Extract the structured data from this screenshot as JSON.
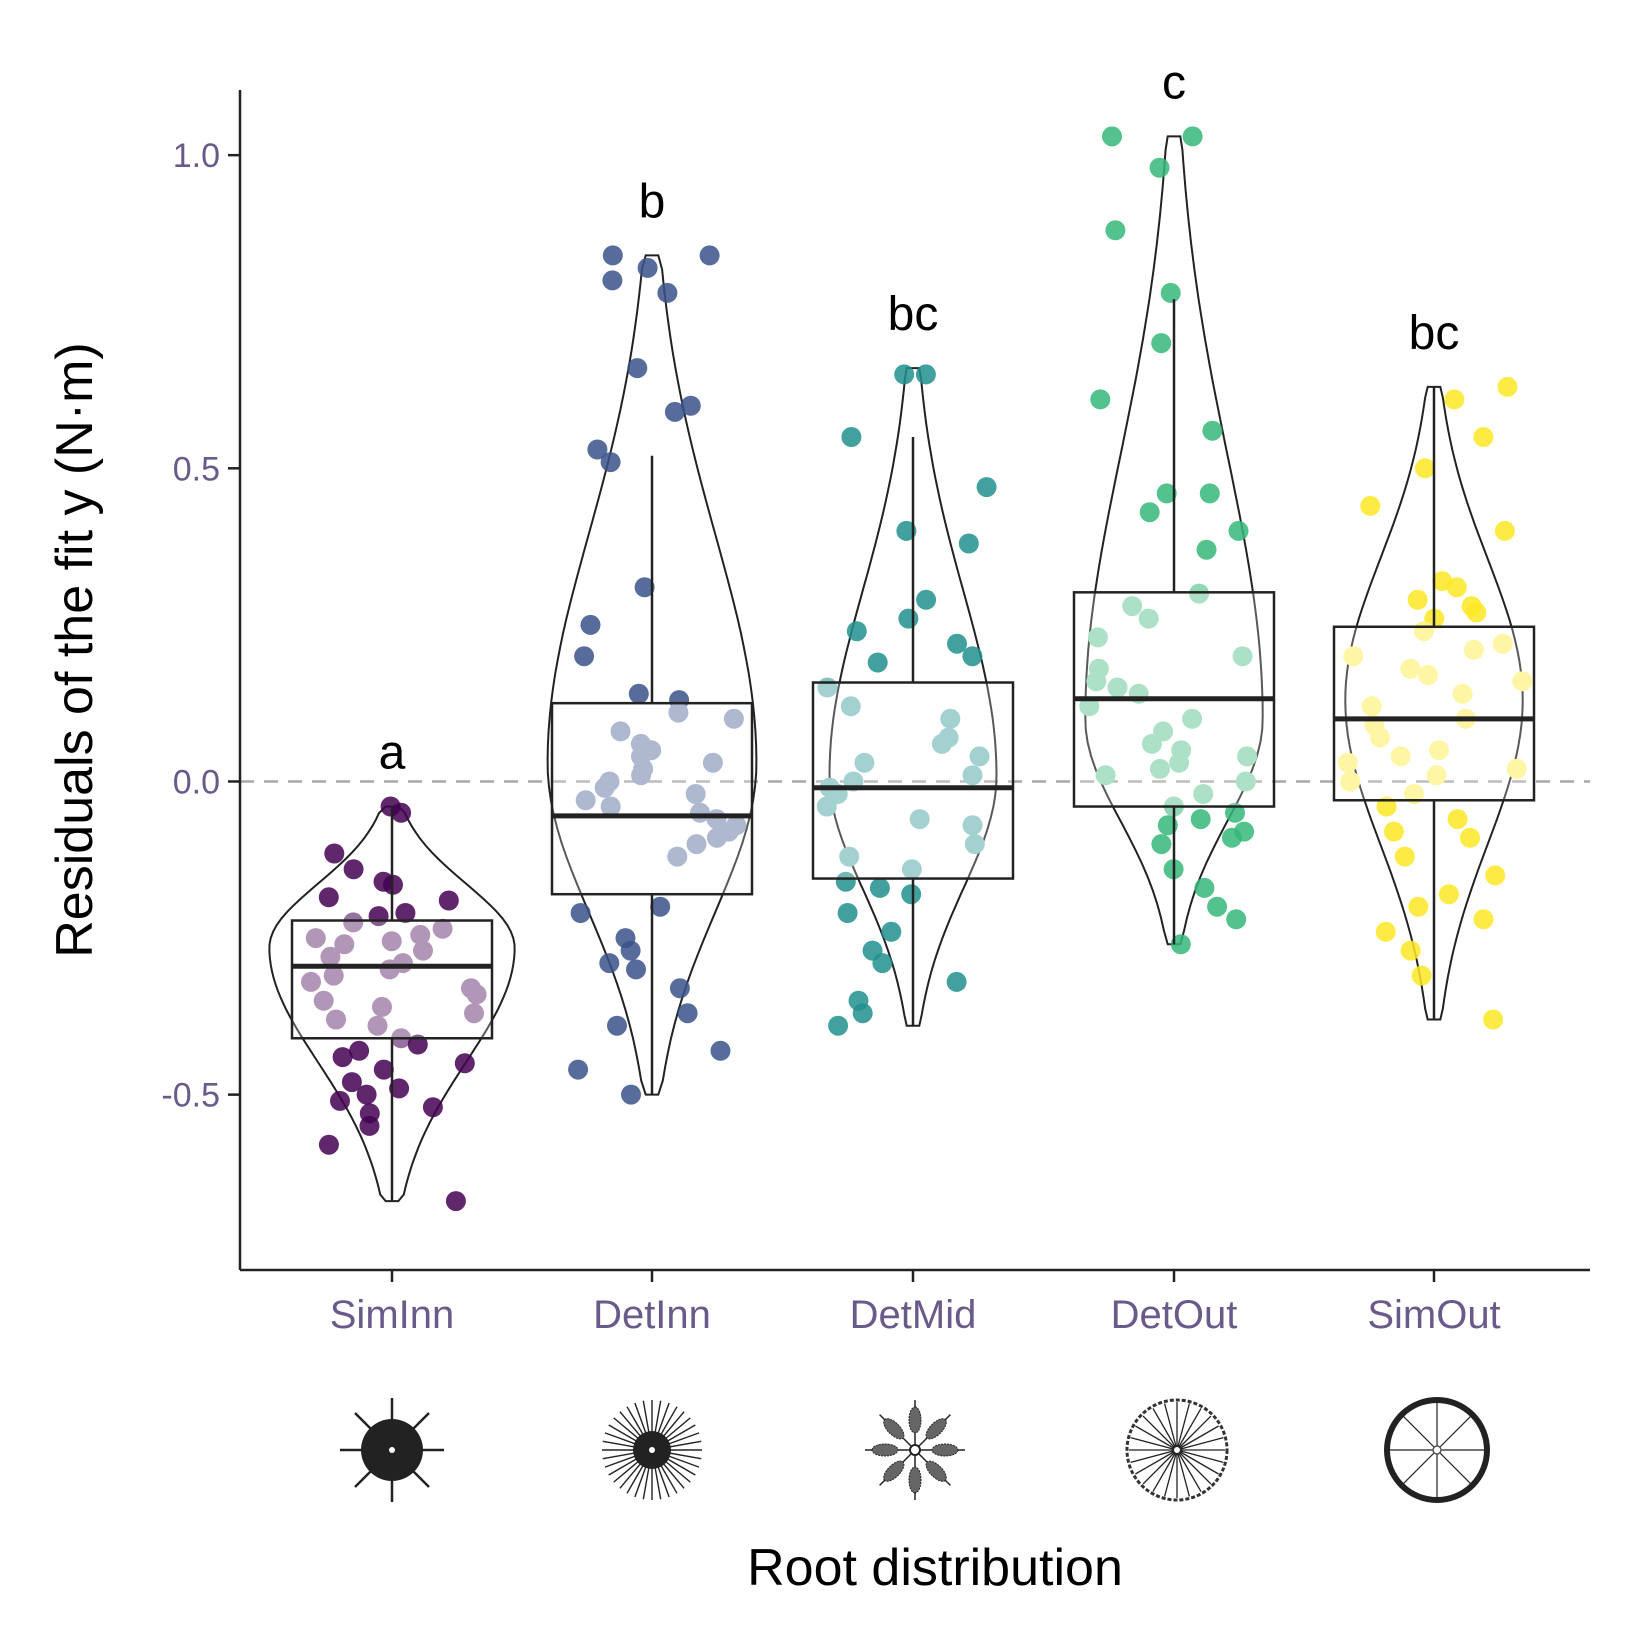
{
  "chart_data": {
    "type": "box-violin-jitter",
    "xlabel": "Root distribution",
    "ylabel": "Residuals of the fit y (N·m)",
    "ylim": [
      -0.78,
      1.12
    ],
    "yticks": [
      -0.5,
      0.0,
      0.5,
      1.0
    ],
    "ytick_labels": [
      "-0.5",
      "0.0",
      "0.5",
      "1.0"
    ],
    "reference_line": 0.0,
    "categories": [
      "SimInn",
      "DetInn",
      "DetMid",
      "DetOut",
      "SimOut"
    ],
    "groups": [
      {
        "name": "SimInn",
        "letter": "a",
        "color": "#440154",
        "icon": "root-diagram-siminn-icon",
        "box": {
          "q1": -0.41,
          "median": -0.295,
          "q3": -0.222,
          "whisker_low": -0.67,
          "whisker_high": -0.04
        },
        "violin": {
          "ymin": -0.67,
          "ymax": -0.04,
          "mode": -0.265,
          "maxwidth": 0.235
        },
        "points": [
          -0.04,
          -0.05,
          -0.115,
          -0.14,
          -0.16,
          -0.165,
          -0.185,
          -0.19,
          -0.21,
          -0.215,
          -0.225,
          -0.235,
          -0.245,
          -0.25,
          -0.255,
          -0.26,
          -0.27,
          -0.28,
          -0.29,
          -0.3,
          -0.31,
          -0.32,
          -0.33,
          -0.34,
          -0.35,
          -0.36,
          -0.37,
          -0.38,
          -0.39,
          -0.41,
          -0.42,
          -0.43,
          -0.44,
          -0.45,
          -0.46,
          -0.48,
          -0.49,
          -0.5,
          -0.51,
          -0.52,
          -0.53,
          -0.55,
          -0.58,
          -0.67
        ]
      },
      {
        "name": "DetInn",
        "letter": "b",
        "color": "#3b528b",
        "icon": "root-diagram-detinn-icon",
        "box": {
          "q1": -0.18,
          "median": -0.055,
          "q3": 0.125,
          "whisker_low": -0.5,
          "whisker_high": 0.52
        },
        "violin": {
          "ymin": -0.5,
          "ymax": 0.84,
          "mode": 0.03,
          "maxwidth": 0.2
        },
        "points": [
          0.84,
          0.84,
          0.82,
          0.8,
          0.78,
          0.66,
          0.6,
          0.59,
          0.53,
          0.51,
          0.31,
          0.25,
          0.2,
          0.14,
          0.13,
          0.11,
          0.1,
          0.08,
          0.06,
          0.05,
          0.04,
          0.03,
          0.02,
          0.01,
          0.0,
          -0.01,
          -0.02,
          -0.03,
          -0.04,
          -0.05,
          -0.06,
          -0.07,
          -0.08,
          -0.09,
          -0.1,
          -0.12,
          -0.2,
          -0.21,
          -0.25,
          -0.27,
          -0.29,
          -0.3,
          -0.33,
          -0.37,
          -0.39,
          -0.43,
          -0.46,
          -0.5
        ]
      },
      {
        "name": "DetMid",
        "letter": "bc",
        "color": "#21908d",
        "icon": "root-diagram-detmid-icon",
        "box": {
          "q1": -0.155,
          "median": -0.01,
          "q3": 0.158,
          "whisker_low": -0.39,
          "whisker_high": 0.55
        },
        "violin": {
          "ymin": -0.39,
          "ymax": 0.66,
          "mode": 0.01,
          "maxwidth": 0.16
        },
        "points": [
          0.65,
          0.65,
          0.55,
          0.47,
          0.4,
          0.38,
          0.29,
          0.26,
          0.24,
          0.22,
          0.2,
          0.19,
          0.15,
          0.12,
          0.1,
          0.07,
          0.06,
          0.04,
          0.03,
          0.01,
          0.0,
          -0.01,
          -0.02,
          -0.04,
          -0.06,
          -0.07,
          -0.1,
          -0.12,
          -0.14,
          -0.16,
          -0.17,
          -0.18,
          -0.21,
          -0.24,
          -0.27,
          -0.29,
          -0.32,
          -0.35,
          -0.37,
          -0.39
        ]
      },
      {
        "name": "DetOut",
        "letter": "c",
        "color": "#35b779",
        "icon": "root-diagram-detout-icon",
        "box": {
          "q1": -0.04,
          "median": 0.132,
          "q3": 0.302,
          "whisker_low": -0.26,
          "whisker_high": 0.77
        },
        "violin": {
          "ymin": -0.26,
          "ymax": 1.03,
          "mode": 0.1,
          "maxwidth": 0.17
        },
        "points": [
          1.03,
          1.03,
          0.98,
          0.88,
          0.78,
          0.7,
          0.61,
          0.56,
          0.46,
          0.46,
          0.43,
          0.4,
          0.37,
          0.3,
          0.28,
          0.26,
          0.23,
          0.2,
          0.18,
          0.16,
          0.15,
          0.14,
          0.12,
          0.1,
          0.08,
          0.06,
          0.05,
          0.04,
          0.03,
          0.02,
          0.01,
          0.0,
          -0.02,
          -0.04,
          -0.05,
          -0.06,
          -0.07,
          -0.08,
          -0.09,
          -0.1,
          -0.14,
          -0.17,
          -0.2,
          -0.22,
          -0.26
        ]
      },
      {
        "name": "SimOut",
        "letter": "bc",
        "color": "#fde725",
        "icon": "root-diagram-simout-icon",
        "box": {
          "q1": -0.03,
          "median": 0.1,
          "q3": 0.247,
          "whisker_low": -0.38,
          "whisker_high": 0.63
        },
        "violin": {
          "ymin": -0.38,
          "ymax": 0.63,
          "mode": 0.13,
          "maxwidth": 0.17
        },
        "points": [
          0.63,
          0.61,
          0.55,
          0.5,
          0.44,
          0.4,
          0.32,
          0.31,
          0.29,
          0.28,
          0.27,
          0.26,
          0.24,
          0.22,
          0.21,
          0.2,
          0.18,
          0.17,
          0.16,
          0.14,
          0.12,
          0.1,
          0.09,
          0.07,
          0.05,
          0.04,
          0.03,
          0.02,
          0.01,
          0.0,
          -0.02,
          -0.04,
          -0.06,
          -0.08,
          -0.09,
          -0.12,
          -0.15,
          -0.18,
          -0.2,
          -0.22,
          -0.24,
          -0.27,
          -0.31,
          -0.38
        ]
      }
    ]
  }
}
